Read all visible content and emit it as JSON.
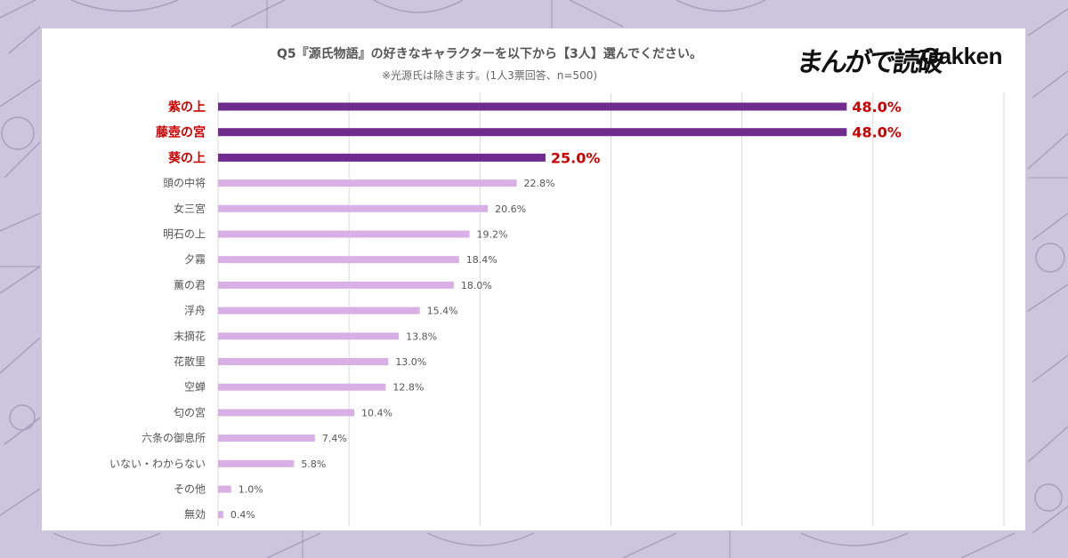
{
  "header": {
    "title": "Q5『源氏物語』の好きなキャラクターを以下から【3人】選んでください。",
    "subtitle": "※光源氏は除きます。(1人3票回答、n=500)",
    "logo_manga": "まんがで読破",
    "logo_gakken": "Gakken"
  },
  "colors": {
    "highlight_bar": "#6f2c8e",
    "normal_bar": "#d9b0e6",
    "highlight_text": "#cc0000",
    "normal_text": "#555555",
    "grid": "#d9d9d9"
  },
  "chart_data": {
    "type": "bar",
    "orientation": "horizontal",
    "categories": [
      "紫の上",
      "藤壺の宮",
      "葵の上",
      "頭の中将",
      "女三宮",
      "明石の上",
      "夕霧",
      "薫の君",
      "浮舟",
      "末摘花",
      "花散里",
      "空蝉",
      "匂の宮",
      "六条の御息所",
      "いない・わからない",
      "その他",
      "無効"
    ],
    "values": [
      48.0,
      48.0,
      25.0,
      22.8,
      20.6,
      19.2,
      18.4,
      18.0,
      15.4,
      13.8,
      13.0,
      12.8,
      10.4,
      7.4,
      5.8,
      1.0,
      0.4
    ],
    "value_labels": [
      "48.0%",
      "48.0%",
      "25.0%",
      "22.8%",
      "20.6%",
      "19.2%",
      "18.4%",
      "18.0%",
      "15.4%",
      "13.8%",
      "13.0%",
      "12.8%",
      "10.4%",
      "7.4%",
      "5.8%",
      "1.0%",
      "0.4%"
    ],
    "highlighted": [
      true,
      true,
      true,
      false,
      false,
      false,
      false,
      false,
      false,
      false,
      false,
      false,
      false,
      false,
      false,
      false,
      false
    ],
    "xlim": [
      0,
      60
    ],
    "grid_step": 10,
    "grid": true
  }
}
